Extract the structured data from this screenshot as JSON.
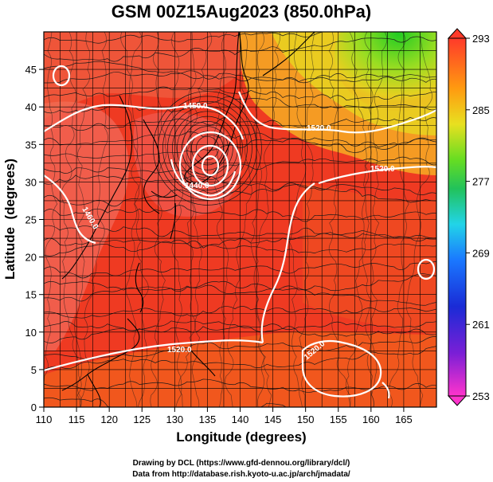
{
  "title": "GSM 00Z15Aug2023 (850.0hPa)",
  "xlabel": "Longitude (degrees)",
  "ylabel": "Latitude  (degrees)",
  "x_ticks": [
    "110",
    "115",
    "120",
    "125",
    "130",
    "135",
    "140",
    "145",
    "150",
    "155",
    "160",
    "165"
  ],
  "y_ticks": [
    "0",
    "5",
    "10",
    "15",
    "20",
    "25",
    "30",
    "35",
    "40",
    "45"
  ],
  "colorbar": {
    "labels": [
      "293",
      "285",
      "277",
      "269",
      "261",
      "253"
    ],
    "min": 253,
    "max": 293
  },
  "contour_labels": [
    "1450.0",
    "1520.0",
    "1520.0",
    "1440.0",
    "1460.0",
    "1520.0",
    "1520.0"
  ],
  "credits": {
    "line1": "Drawing by DCL (https://www.gfd-dennou.org/library/dcl/)",
    "line2": "Data from http://database.rish.kyoto-u.ac.jp/arch/jmadata/"
  },
  "map_data": {
    "lon_range": [
      110,
      170
    ],
    "lat_range": [
      0,
      50
    ],
    "field": "temperature (shaded) with streamlines and geopotential height contours",
    "typhoon_center": {
      "lon": 135,
      "lat": 34.5
    }
  }
}
